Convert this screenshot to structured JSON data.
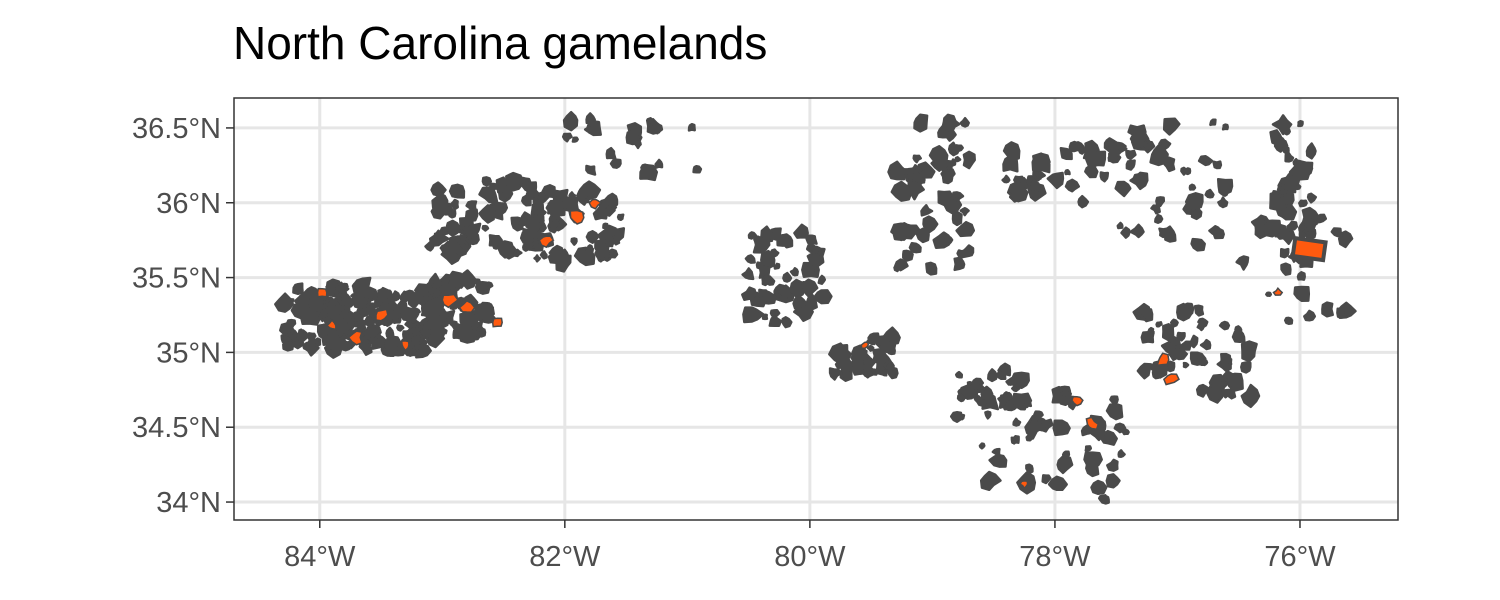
{
  "title": "North Carolina gamelands",
  "axes": {
    "lon_range": [
      -84.7,
      -75.2
    ],
    "lat_range": [
      33.88,
      36.7
    ],
    "x_ticks": [
      {
        "value": -84,
        "label": "84°W"
      },
      {
        "value": -82,
        "label": "82°W"
      },
      {
        "value": -80,
        "label": "80°W"
      },
      {
        "value": -78,
        "label": "78°W"
      },
      {
        "value": -76,
        "label": "76°W"
      }
    ],
    "y_ticks": [
      {
        "value": 36.5,
        "label": "36.5°N"
      },
      {
        "value": 36.0,
        "label": "36°N"
      },
      {
        "value": 35.5,
        "label": "35.5°N"
      },
      {
        "value": 35.0,
        "label": "35°N"
      },
      {
        "value": 34.5,
        "label": "34.5°N"
      },
      {
        "value": 34.0,
        "label": "34°N"
      }
    ],
    "grid": true
  },
  "colors": {
    "outline": "#4a4a4a",
    "fill_highlight": "#ff5a0f",
    "grid": "#e6e6e6",
    "panel_border": "#333333",
    "tick_label": "#4d4d4d"
  },
  "features": [
    {
      "name": "western-mountains-west",
      "lon": [
        -84.3,
        -83.6
      ],
      "lat": [
        35.02,
        35.45
      ],
      "count": 90
    },
    {
      "name": "western-mountains-central",
      "lon": [
        -83.6,
        -83.0
      ],
      "lat": [
        35.0,
        35.42
      ],
      "count": 80
    },
    {
      "name": "western-mountains-east",
      "lon": [
        -83.1,
        -82.6
      ],
      "lat": [
        35.1,
        35.5
      ],
      "count": 50
    },
    {
      "name": "pisgah-north",
      "lon": [
        -83.1,
        -82.2
      ],
      "lat": [
        35.65,
        36.15
      ],
      "count": 55
    },
    {
      "name": "pisgah-northeast",
      "lon": [
        -82.3,
        -81.5
      ],
      "lat": [
        35.6,
        36.1
      ],
      "count": 60
    },
    {
      "name": "northern-ridge",
      "lon": [
        -82.0,
        -80.9
      ],
      "lat": [
        36.2,
        36.58
      ],
      "count": 20
    },
    {
      "name": "piedmont-central",
      "lon": [
        -80.5,
        -79.9
      ],
      "lat": [
        35.2,
        35.8
      ],
      "count": 50
    },
    {
      "name": "piedmont-south",
      "lon": [
        -79.8,
        -79.3
      ],
      "lat": [
        34.85,
        35.1
      ],
      "count": 30
    },
    {
      "name": "piedmont-north",
      "lon": [
        -79.3,
        -78.7
      ],
      "lat": [
        35.55,
        36.55
      ],
      "count": 50
    },
    {
      "name": "northeast-piedmont",
      "lon": [
        -78.4,
        -77.5
      ],
      "lat": [
        36.0,
        36.4
      ],
      "count": 30
    },
    {
      "name": "coastal-plain-north",
      "lon": [
        -77.6,
        -76.6
      ],
      "lat": [
        35.7,
        36.55
      ],
      "count": 45
    },
    {
      "name": "outer-banks-north",
      "lon": [
        -76.2,
        -75.9
      ],
      "lat": [
        35.6,
        36.55
      ],
      "count": 35
    },
    {
      "name": "sandhills",
      "lon": [
        -78.8,
        -78.2
      ],
      "lat": [
        34.5,
        34.9
      ],
      "count": 30
    },
    {
      "name": "southeast-coast",
      "lon": [
        -78.6,
        -77.4
      ],
      "lat": [
        34.0,
        34.75
      ],
      "count": 45
    },
    {
      "name": "croatan",
      "lon": [
        -77.3,
        -76.4
      ],
      "lat": [
        34.7,
        35.3
      ],
      "count": 45
    },
    {
      "name": "pamlico-east",
      "lon": [
        -76.5,
        -75.6
      ],
      "lat": [
        35.2,
        35.9
      ],
      "count": 20
    }
  ],
  "highlights": [
    {
      "name": "hl-west-1",
      "lon": -83.98,
      "lat": 35.4,
      "size": 0.04
    },
    {
      "name": "hl-west-2",
      "lon": -83.9,
      "lat": 35.18,
      "size": 0.04
    },
    {
      "name": "hl-west-3",
      "lon": -83.7,
      "lat": 35.1,
      "size": 0.05
    },
    {
      "name": "hl-west-4",
      "lon": -83.5,
      "lat": 35.25,
      "size": 0.05
    },
    {
      "name": "hl-west-5",
      "lon": -83.3,
      "lat": 35.05,
      "size": 0.04
    },
    {
      "name": "hl-east-1",
      "lon": -82.95,
      "lat": 35.35,
      "size": 0.06
    },
    {
      "name": "hl-east-2",
      "lon": -82.8,
      "lat": 35.3,
      "size": 0.05
    },
    {
      "name": "hl-east-3",
      "lon": -82.55,
      "lat": 35.2,
      "size": 0.04
    },
    {
      "name": "hl-ne-1",
      "lon": -82.15,
      "lat": 35.75,
      "size": 0.05
    },
    {
      "name": "hl-ne-2",
      "lon": -81.9,
      "lat": 35.9,
      "size": 0.06
    },
    {
      "name": "hl-ne-3",
      "lon": -81.75,
      "lat": 36.0,
      "size": 0.04
    },
    {
      "name": "hl-pied-1",
      "lon": -79.55,
      "lat": 35.05,
      "size": 0.03
    },
    {
      "name": "hl-sand-1",
      "lon": -77.82,
      "lat": 34.68,
      "size": 0.04
    },
    {
      "name": "hl-sand-2",
      "lon": -77.7,
      "lat": 34.52,
      "size": 0.05
    },
    {
      "name": "hl-se-1",
      "lon": -78.25,
      "lat": 34.12,
      "size": 0.03
    },
    {
      "name": "hl-croatan-1",
      "lon": -77.12,
      "lat": 34.95,
      "size": 0.05
    },
    {
      "name": "hl-croatan-2",
      "lon": -77.05,
      "lat": 34.82,
      "size": 0.05
    },
    {
      "name": "hl-pam-1",
      "lon": -76.18,
      "lat": 35.4,
      "size": 0.03
    }
  ],
  "highlight_box": {
    "name": "pamlico-highlight-box",
    "lon": [
      -76.05,
      -75.8
    ],
    "lat": [
      35.63,
      35.75
    ]
  }
}
